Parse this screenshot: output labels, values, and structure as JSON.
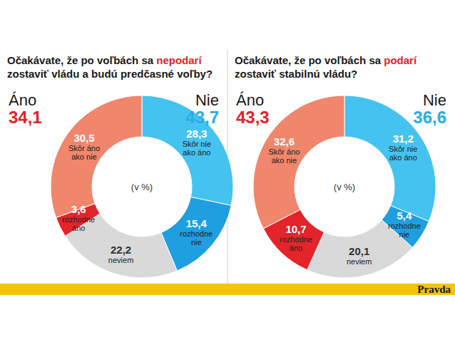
{
  "chart_data": [
    {
      "type": "donut",
      "title": "Očakávate, že po voľbách sa nepodarí zostaviť vládu a budú predčasné voľby?",
      "title_emphasis": "nepodarí",
      "center_label": "(v %)",
      "categories": [
        "Skôr nie ako áno",
        "rozhodne nie",
        "neviem",
        "rozhodne áno",
        "Skôr áno ako nie"
      ],
      "values": [
        28.3,
        15.4,
        22.2,
        3.6,
        30.5
      ],
      "value_labels": [
        "28,3",
        "15,4",
        "22,2",
        "3,6",
        "30,5"
      ],
      "colors": [
        "#45c3f0",
        "#1f9fe0",
        "#d9d9d9",
        "#e3242b",
        "#f0866c"
      ],
      "data_labels": true,
      "groups": [
        {
          "name": "Áno",
          "value": 34.1,
          "value_label": "34,1",
          "color": "#e3242b"
        },
        {
          "name": "Nie",
          "value": 43.7,
          "value_label": "43,7",
          "color": "#27aee8"
        }
      ]
    },
    {
      "type": "donut",
      "title": "Očakávate, že po voľbách sa podarí zostaviť stabilnú vládu?",
      "title_emphasis": "podarí",
      "center_label": "(v %)",
      "categories": [
        "Skôr nie ako áno",
        "rozhodne nie",
        "neviem",
        "rozhodne áno",
        "Skôr áno ako nie"
      ],
      "values": [
        31.2,
        5.4,
        20.1,
        10.7,
        32.6
      ],
      "value_labels": [
        "31,2",
        "5,4",
        "20,1",
        "10,7",
        "32,6"
      ],
      "colors": [
        "#45c3f0",
        "#1f9fe0",
        "#d9d9d9",
        "#e3242b",
        "#f0866c"
      ],
      "data_labels": true,
      "groups": [
        {
          "name": "Áno",
          "value": 43.3,
          "value_label": "43,3",
          "color": "#e3242b"
        },
        {
          "name": "Nie",
          "value": 36.6,
          "value_label": "36,6",
          "color": "#27aee8"
        }
      ]
    }
  ],
  "source": "Pravda"
}
